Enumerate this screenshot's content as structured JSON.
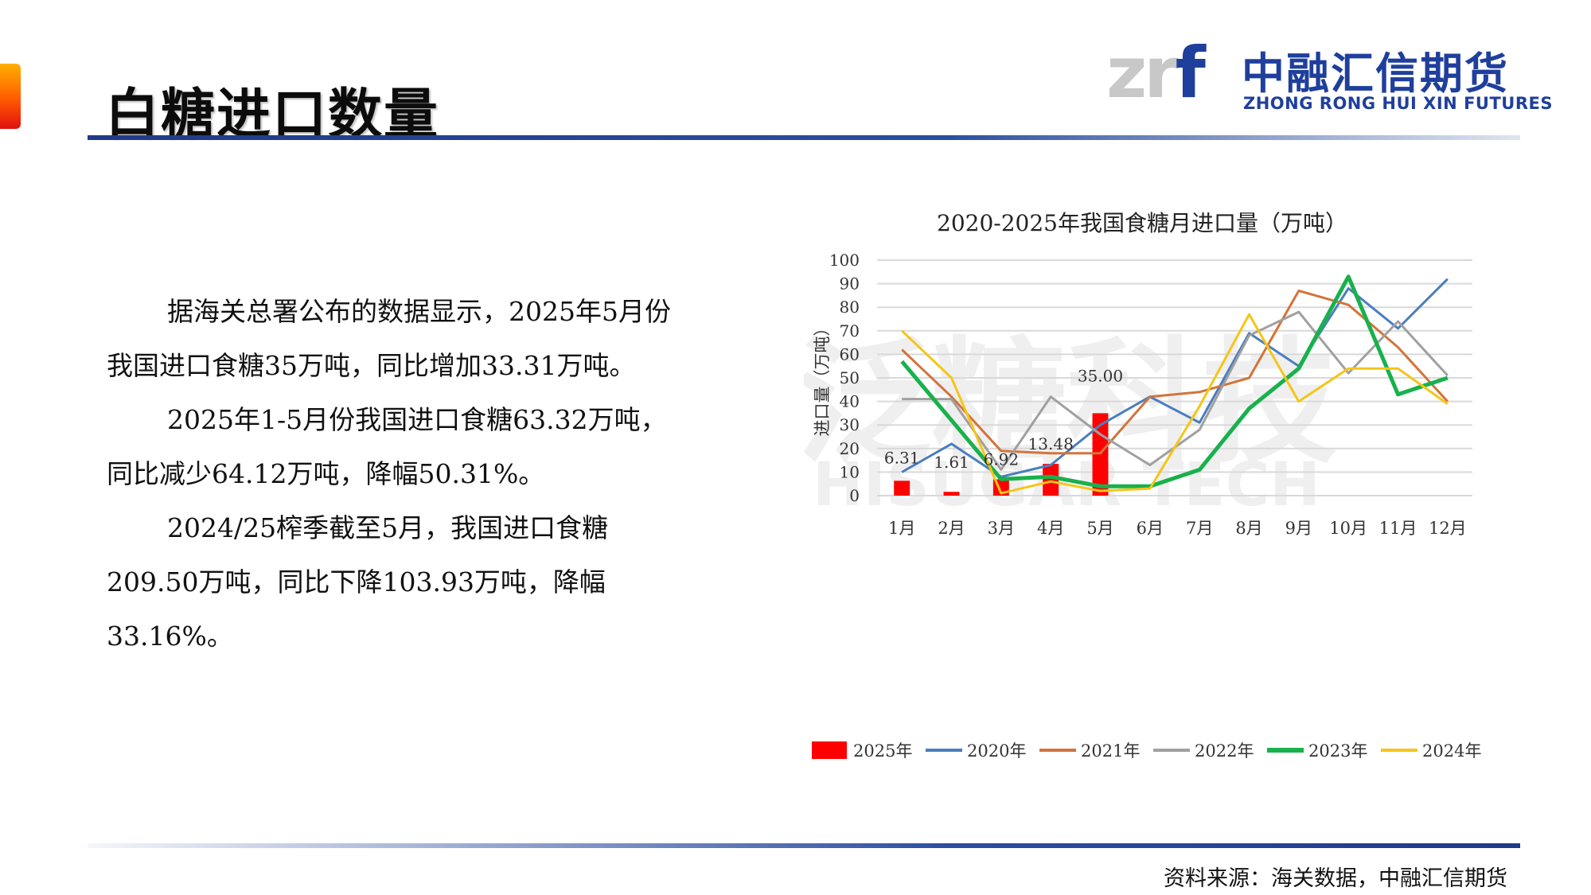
{
  "page": {
    "title": "白糖进口数量",
    "source": "资料来源：海关数据，中融汇信期货"
  },
  "logo": {
    "mark_zr": "zr",
    "mark_f": "f",
    "cn": "中融汇信期货",
    "en": "ZHONG RONG HUI XIN FUTURES"
  },
  "watermark": {
    "cn": "泛糖科技",
    "en": "HISUGAR TECH"
  },
  "text": {
    "p1_line1": "据海关总署公布的数据显示，2025年5月份",
    "p1_line2": "我国进口食糖35万吨，同比增加33.31万吨。",
    "p2_line1": "2025年1-5月份我国进口食糖63.32万吨，",
    "p2_line2": "同比减少64.12万吨，降幅50.31%。",
    "p3_line1": "2024/25榨季截至5月，我国进口食糖",
    "p3_line2": "209.50万吨，同比下降103.93万吨，降幅",
    "p3_line3": "33.16%。"
  },
  "colors": {
    "bar_2025": "#ff0000",
    "s2020": "#4a7ebf",
    "s2021": "#d2743b",
    "s2022": "#a0a0a0",
    "s2023": "#18b14c",
    "s2024": "#f5c518",
    "grid": "#d9d9d9"
  },
  "chart_data": {
    "type": "bar+line",
    "title": "2020-2025年我国食糖月进口量（万吨）",
    "ylabel": "进口量（万吨）",
    "ylim": [
      0,
      100
    ],
    "yticks": [
      "0",
      "10",
      "20",
      "30",
      "40",
      "50",
      "60",
      "70",
      "80",
      "90",
      "100"
    ],
    "categories": [
      "1月",
      "2月",
      "3月",
      "4月",
      "5月",
      "6月",
      "7月",
      "8月",
      "9月",
      "10月",
      "11月",
      "12月"
    ],
    "grid": true,
    "legend_position": "bottom",
    "bar_series": {
      "name": "2025年",
      "values": [
        6.31,
        1.61,
        6.92,
        13.48,
        35.0
      ],
      "labels": [
        "6.31",
        "1.61",
        "6.92",
        "13.48",
        "35.00"
      ]
    },
    "line_series": [
      {
        "name": "2020年",
        "color_key": "s2020",
        "values": [
          10,
          22,
          8,
          13,
          30,
          42,
          31,
          69,
          55,
          88,
          71,
          92
        ]
      },
      {
        "name": "2021年",
        "color_key": "s2021",
        "values": [
          62,
          42,
          19,
          18,
          18,
          42,
          44,
          50,
          87,
          81,
          63,
          40
        ]
      },
      {
        "name": "2022年",
        "color_key": "s2022",
        "values": [
          41,
          41,
          11,
          42,
          26,
          13,
          28,
          68,
          78,
          52,
          74,
          51
        ]
      },
      {
        "name": "2023年",
        "color_key": "s2023",
        "values": [
          57,
          32,
          7,
          8,
          4,
          4,
          11,
          37,
          54,
          93,
          43,
          50
        ]
      },
      {
        "name": "2024年",
        "color_key": "s2024",
        "values": [
          70,
          50,
          1,
          6,
          2,
          3,
          38,
          77,
          40,
          54,
          54,
          39
        ]
      }
    ]
  }
}
